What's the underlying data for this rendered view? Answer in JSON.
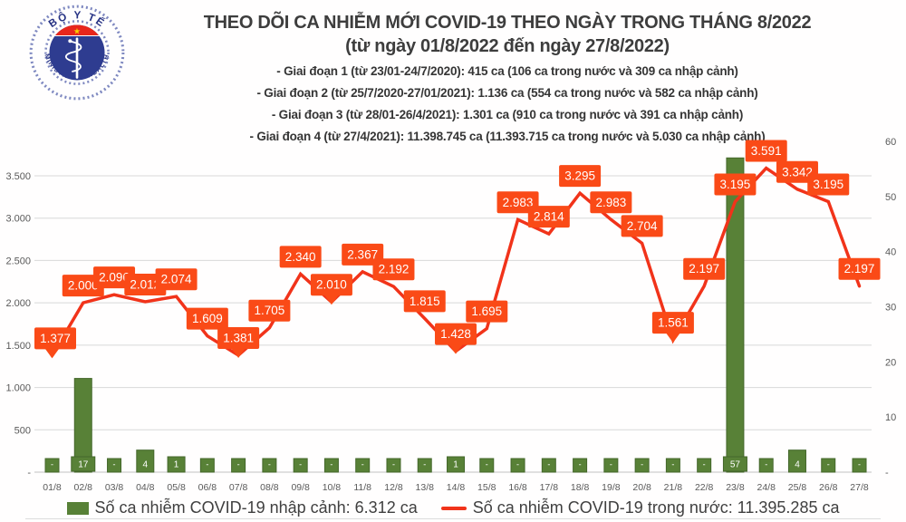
{
  "logo": {
    "top_text": "BỘ Y TẾ",
    "bottom_text": "MINISTRY OF HEALTH"
  },
  "header": {
    "title": "THEO DÕI CA NHIỄM MỚI COVID-19 THEO NGÀY TRONG THÁNG 8/2022",
    "subtitle": "(từ ngày 01/8/2022 đến ngày 27/8/2022)",
    "phases": [
      "- Giai đoạn 1 (từ 23/01-24/7/2020): 415 ca (106 ca trong nước và 309 ca nhập cảnh)",
      "- Giai đoạn 2 (từ 25/7/2020-27/01/2021): 1.136 ca (554 ca trong nước và 582 ca nhập cảnh)",
      "- Giai đoạn 3 (từ 28/01-26/4/2021): 1.301 ca (910 ca trong nước và 391 ca nhập cảnh)",
      "- Giai đoạn 4 (từ 27/4/2021): 11.398.745 ca (11.393.715 ca trong nước và 5.030 ca nhập cảnh)"
    ]
  },
  "legend": {
    "imported_label": "Số ca nhiễm COVID-19 nhập cảnh: 6.312 ca",
    "domestic_label": "Số ca nhiễm COVID-19 trong nước: 11.395.285 ca"
  },
  "colors": {
    "label_box": "#fa4a17",
    "line": "#f1331a",
    "bar": "#588137",
    "bar_border": "#44672b",
    "grid": "#d8d8d8",
    "axis_line": "#c2c2c2",
    "axis_text": "#595959",
    "label_text": "#ffffff",
    "logo_blue": "#2e3c90",
    "logo_red": "#e8261c",
    "logo_star": "#f8d000"
  },
  "chart_data": {
    "type": "line",
    "title": "Theo dõi ca nhiễm mới COVID-19 theo ngày trong tháng 8/2022 (từ ngày 01/8/2022 đến ngày 27/8/2022)",
    "categories": [
      "01/8",
      "02/8",
      "03/8",
      "04/8",
      "05/8",
      "06/8",
      "07/8",
      "08/8",
      "09/8",
      "10/8",
      "11/8",
      "12/8",
      "13/8",
      "14/8",
      "15/8",
      "16/8",
      "17/8",
      "18/8",
      "19/8",
      "20/8",
      "21/8",
      "22/8",
      "23/8",
      "24/8",
      "25/8",
      "26/8",
      "27/8"
    ],
    "series": [
      {
        "name": "Số ca nhiễm COVID-19 trong nước",
        "type": "line",
        "axis": "left",
        "values": [
          1377,
          2000,
          2096,
          2012,
          2074,
          1609,
          1381,
          1705,
          2340,
          2010,
          2367,
          2192,
          1815,
          1428,
          1695,
          2983,
          2814,
          3295,
          2983,
          2704,
          1561,
          2197,
          3195,
          3591,
          3342,
          3195,
          2197
        ]
      },
      {
        "name": "Số ca nhiễm COVID-19 nhập cảnh",
        "type": "bar",
        "axis": "right",
        "values": [
          "-",
          17,
          "-",
          4,
          1,
          "-",
          "-",
          "-",
          "-",
          "-",
          "-",
          "-",
          "-",
          1,
          "-",
          "-",
          "-",
          "-",
          "-",
          "-",
          "-",
          "-",
          57,
          "-",
          4,
          "-",
          "-"
        ]
      }
    ],
    "left_axis": {
      "ticks": [
        "-",
        "500",
        "1.000",
        "1.500",
        "2.000",
        "2.500",
        "3.000",
        "3.500"
      ],
      "range": [
        0,
        3500
      ]
    },
    "right_axis": {
      "ticks": [
        "-",
        "10",
        "20",
        "30",
        "40",
        "50",
        "60"
      ],
      "range": [
        0,
        60
      ]
    },
    "grid": true,
    "legend_position": "bottom",
    "label_pointers": [
      0,
      6,
      9,
      13,
      20
    ]
  }
}
